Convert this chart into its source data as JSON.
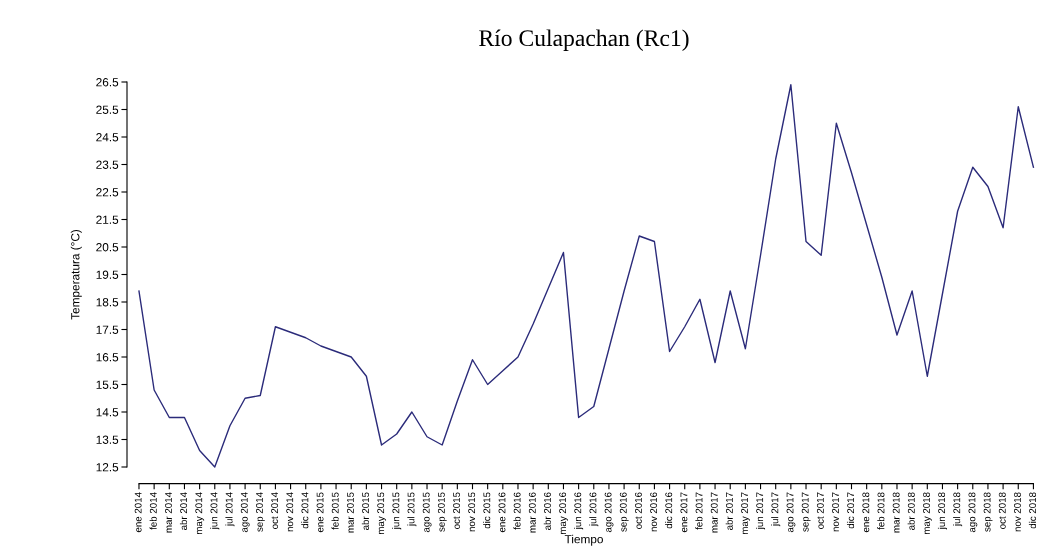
{
  "chart_data": {
    "type": "line",
    "title": "Río Culapachan (Rc1)",
    "xlabel": "Tiempo",
    "ylabel": "Temperatura (°C)",
    "categories": [
      "ene 2014",
      "feb 2014",
      "mar 2014",
      "abr 2014",
      "may 2014",
      "jun 2014",
      "jul 2014",
      "ago 2014",
      "sep 2014",
      "oct 2014",
      "nov 2014",
      "dic 2014",
      "ene 2015",
      "feb 2015",
      "mar 2015",
      "abr 2015",
      "may 2015",
      "jun 2015",
      "jul 2015",
      "ago 2015",
      "sep 2015",
      "oct 2015",
      "nov 2015",
      "dic 2015",
      "ene 2016",
      "feb 2016",
      "mar 2016",
      "abr 2016",
      "may 2016",
      "jun 2016",
      "jul 2016",
      "ago 2016",
      "sep 2016",
      "oct 2016",
      "nov 2016",
      "dic 2016",
      "ene 2017",
      "feb 2017",
      "mar 2017",
      "abr 2017",
      "may 2017",
      "jun 2017",
      "jul 2017",
      "ago 2017",
      "sep 2017",
      "oct 2017",
      "nov 2017",
      "dic 2017",
      "ene 2018",
      "feb 2018",
      "mar 2018",
      "abr 2018",
      "may 2018",
      "jun 2018",
      "jul 2018",
      "ago 2018",
      "sep 2018",
      "oct 2018",
      "nov 2018",
      "dic 2018"
    ],
    "series": [
      {
        "color": "#2b2b7a",
        "values": [
          18.9,
          15.3,
          14.3,
          14.3,
          13.1,
          12.5,
          14.0,
          15.0,
          15.1,
          17.6,
          17.4,
          17.2,
          16.9,
          16.7,
          16.5,
          15.8,
          13.3,
          13.7,
          14.5,
          13.6,
          13.3,
          14.9,
          16.4,
          15.5,
          16.0,
          16.5,
          17.7,
          19.0,
          20.3,
          14.3,
          14.7,
          16.8,
          18.9,
          20.9,
          20.7,
          16.7,
          17.6,
          18.6,
          16.3,
          18.9,
          16.8,
          20.2,
          23.7,
          26.4,
          20.7,
          20.2,
          25.0,
          23.2,
          21.3,
          19.4,
          17.3,
          18.9,
          15.8,
          18.8,
          21.8,
          23.4,
          22.7,
          21.2,
          25.6,
          23.4
        ]
      }
    ],
    "ylim": [
      12.5,
      26.5
    ],
    "yticks": [
      12.5,
      13.5,
      14.5,
      15.5,
      16.5,
      17.5,
      18.5,
      19.5,
      20.5,
      21.5,
      22.5,
      23.5,
      24.5,
      25.5,
      26.5
    ],
    "grid": false,
    "marker": "none",
    "line_style": "solid"
  }
}
